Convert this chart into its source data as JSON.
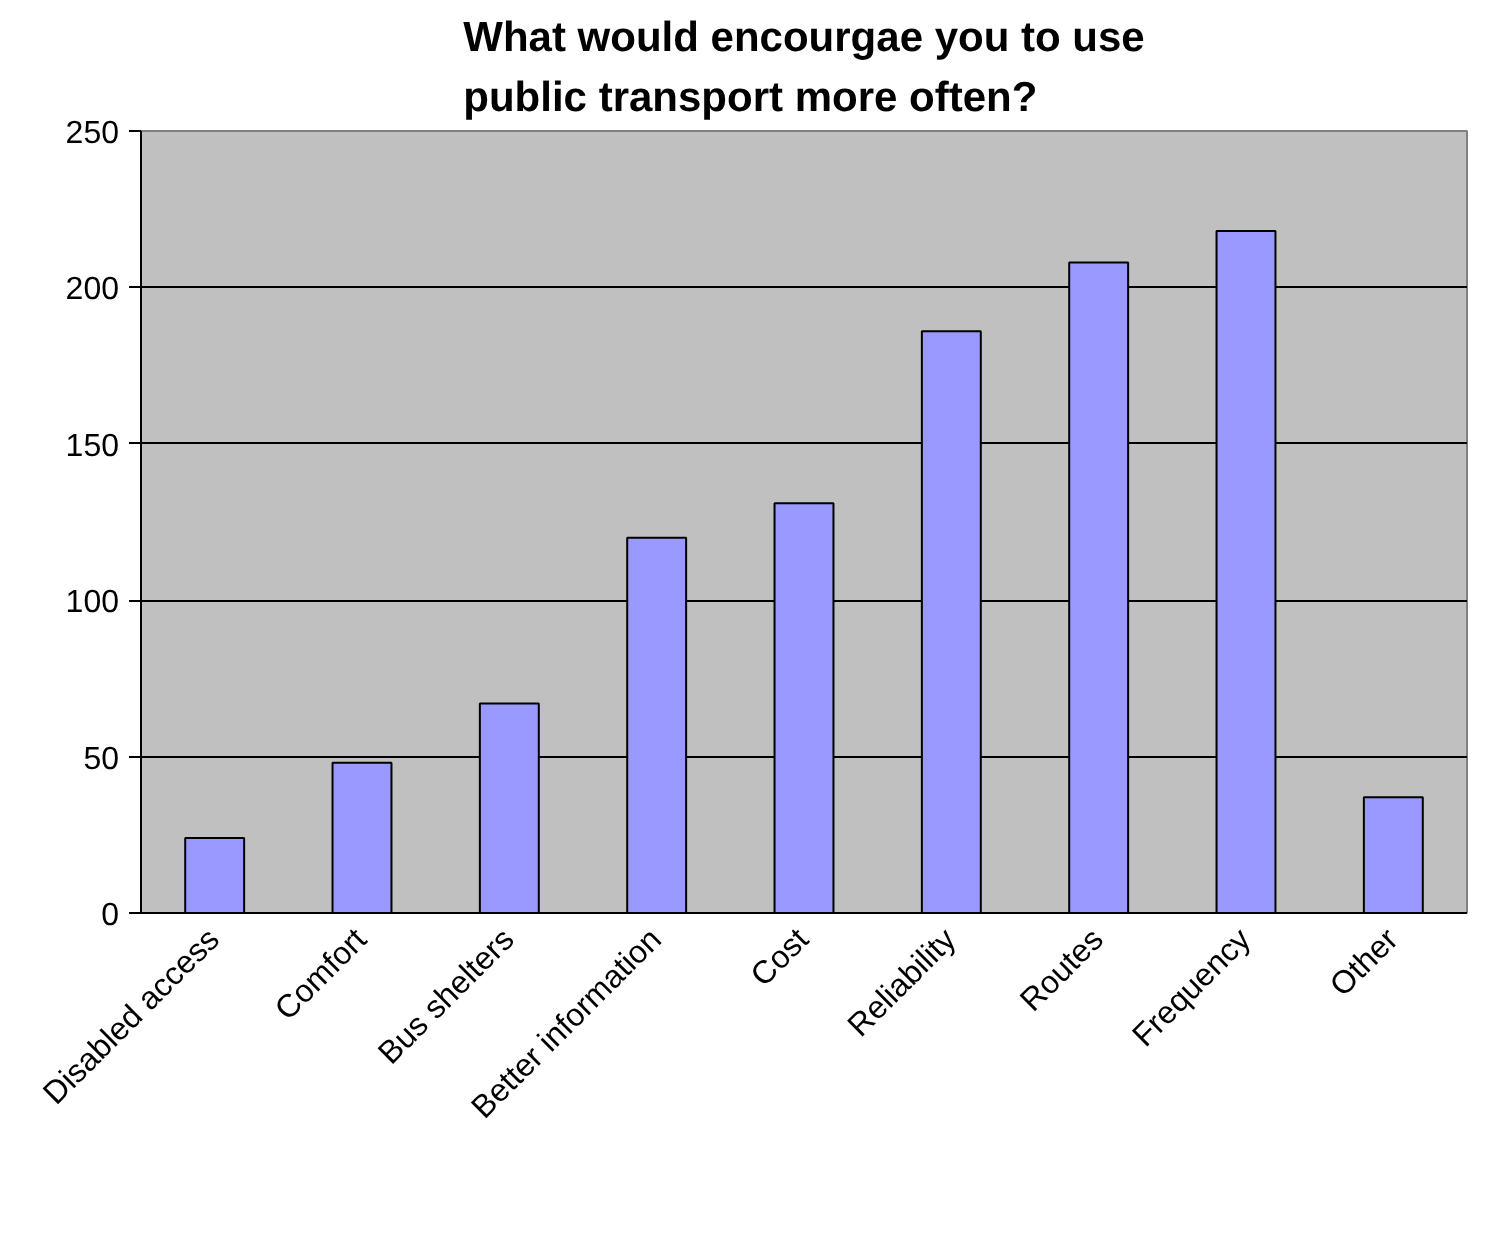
{
  "chart_data": {
    "type": "bar",
    "title": "What would encourgae you to use public transport more often?",
    "categories": [
      "Disabled access",
      "Comfort",
      "Bus shelters",
      "Better information",
      "Cost",
      "Reliability",
      "Routes",
      "Frequency",
      "Other"
    ],
    "values": [
      24,
      48,
      67,
      120,
      131,
      186,
      208,
      218,
      37
    ],
    "color": "#9999ff",
    "ylim": [
      0,
      250
    ],
    "yticks": [
      0,
      50,
      100,
      150,
      200,
      250
    ],
    "grid": "y"
  }
}
